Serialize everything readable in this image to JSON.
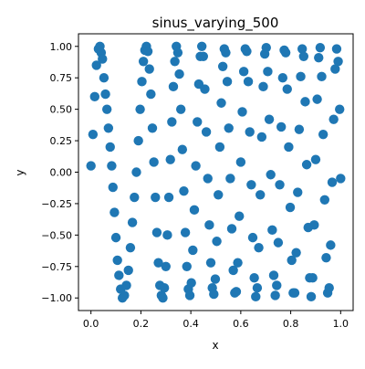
{
  "chart_data": {
    "type": "scatter",
    "title": "sinus_varying_500",
    "xlabel": "x",
    "ylabel": "y",
    "xlim": [
      -0.05,
      1.05
    ],
    "ylim": [
      -1.1,
      1.1
    ],
    "xticks": [
      0.0,
      0.2,
      0.4,
      0.6,
      0.8,
      1.0
    ],
    "xtick_labels": [
      "0.0",
      "0.2",
      "0.4",
      "0.6",
      "0.8",
      "1.0"
    ],
    "yticks": [
      -1.0,
      -0.75,
      -0.5,
      -0.25,
      0.0,
      0.25,
      0.5,
      0.75,
      1.0
    ],
    "ytick_labels": [
      "−1.00",
      "−0.75",
      "−0.50",
      "−0.25",
      "0.00",
      "0.25",
      "0.50",
      "0.75",
      "1.00"
    ],
    "grid": false,
    "marker_color": "#1f77b4",
    "x": [
      0.0,
      0.008,
      0.015,
      0.022,
      0.03,
      0.036,
      0.041,
      0.046,
      0.052,
      0.058,
      0.064,
      0.07,
      0.077,
      0.083,
      0.088,
      0.094,
      0.1,
      0.106,
      0.112,
      0.119,
      0.126,
      0.134,
      0.142,
      0.15,
      0.158,
      0.166,
      0.174,
      0.182,
      0.19,
      0.197,
      0.204,
      0.21,
      0.216,
      0.222,
      0.228,
      0.234,
      0.24,
      0.246,
      0.252,
      0.258,
      0.264,
      0.27,
      0.276,
      0.282,
      0.288,
      0.294,
      0.3,
      0.306,
      0.312,
      0.318,
      0.324,
      0.33,
      0.336,
      0.342,
      0.348,
      0.354,
      0.36,
      0.366,
      0.372,
      0.378,
      0.384,
      0.39,
      0.396,
      0.402,
      0.408,
      0.414,
      0.42,
      0.426,
      0.432,
      0.438,
      0.444,
      0.45,
      0.456,
      0.462,
      0.468,
      0.474,
      0.48,
      0.486,
      0.492,
      0.498,
      0.504,
      0.51,
      0.516,
      0.522,
      0.528,
      0.534,
      0.54,
      0.546,
      0.552,
      0.558,
      0.564,
      0.57,
      0.576,
      0.582,
      0.588,
      0.594,
      0.6,
      0.606,
      0.612,
      0.618,
      0.624,
      0.63,
      0.636,
      0.642,
      0.648,
      0.654,
      0.66,
      0.666,
      0.672,
      0.678,
      0.684,
      0.69,
      0.696,
      0.702,
      0.708,
      0.714,
      0.72,
      0.726,
      0.732,
      0.738,
      0.744,
      0.75,
      0.756,
      0.762,
      0.768,
      0.774,
      0.78,
      0.786,
      0.792,
      0.798,
      0.804,
      0.81,
      0.816,
      0.822,
      0.828,
      0.834,
      0.84,
      0.846,
      0.852,
      0.858,
      0.864,
      0.87,
      0.876,
      0.882,
      0.888,
      0.894,
      0.9,
      0.906,
      0.912,
      0.918,
      0.924,
      0.93,
      0.936,
      0.942,
      0.948,
      0.954,
      0.96,
      0.966,
      0.972,
      0.978,
      0.984,
      0.99,
      0.996,
      1.0
    ],
    "y": [
      0.05,
      0.3,
      0.6,
      0.85,
      0.98,
      1.0,
      0.95,
      0.9,
      0.75,
      0.62,
      0.5,
      0.35,
      0.2,
      0.05,
      -0.12,
      -0.32,
      -0.52,
      -0.7,
      -0.82,
      -0.93,
      -1.0,
      -0.98,
      -0.9,
      -0.78,
      -0.6,
      -0.4,
      -0.2,
      0.0,
      0.25,
      0.5,
      0.72,
      0.88,
      0.97,
      1.0,
      0.96,
      0.82,
      0.62,
      0.35,
      0.08,
      -0.2,
      -0.48,
      -0.72,
      -0.9,
      -0.98,
      -1.0,
      -0.92,
      -0.75,
      -0.5,
      -0.2,
      0.1,
      0.4,
      0.68,
      0.88,
      1.0,
      0.95,
      0.78,
      0.5,
      0.18,
      -0.15,
      -0.48,
      -0.75,
      -0.93,
      -0.98,
      -0.88,
      -0.62,
      -0.3,
      0.05,
      0.4,
      0.7,
      0.92,
      1.0,
      0.92,
      0.66,
      0.32,
      -0.05,
      -0.42,
      -0.72,
      -0.92,
      -0.97,
      -0.85,
      -0.55,
      -0.18,
      0.2,
      0.55,
      0.84,
      0.98,
      0.95,
      0.72,
      0.35,
      -0.05,
      -0.45,
      -0.78,
      -0.96,
      -0.95,
      -0.72,
      -0.35,
      0.08,
      0.48,
      0.8,
      0.98,
      0.96,
      0.72,
      0.32,
      -0.1,
      -0.52,
      -0.84,
      -0.99,
      -0.92,
      -0.6,
      -0.18,
      0.28,
      0.68,
      0.94,
      0.99,
      0.8,
      0.42,
      -0.02,
      -0.46,
      -0.82,
      -0.98,
      -0.9,
      -0.56,
      -0.1,
      0.36,
      0.75,
      0.97,
      0.95,
      0.66,
      0.2,
      -0.28,
      -0.7,
      -0.96,
      -0.96,
      -0.64,
      -0.16,
      0.34,
      0.76,
      0.98,
      0.92,
      0.56,
      0.06,
      -0.44,
      -0.84,
      -0.99,
      -0.84,
      -0.42,
      0.1,
      0.58,
      0.91,
      0.99,
      0.76,
      0.3,
      -0.22,
      -0.68,
      -0.96,
      -0.92,
      -0.58,
      -0.08,
      0.42,
      0.82,
      0.98,
      0.88,
      0.5,
      -0.05
    ]
  }
}
